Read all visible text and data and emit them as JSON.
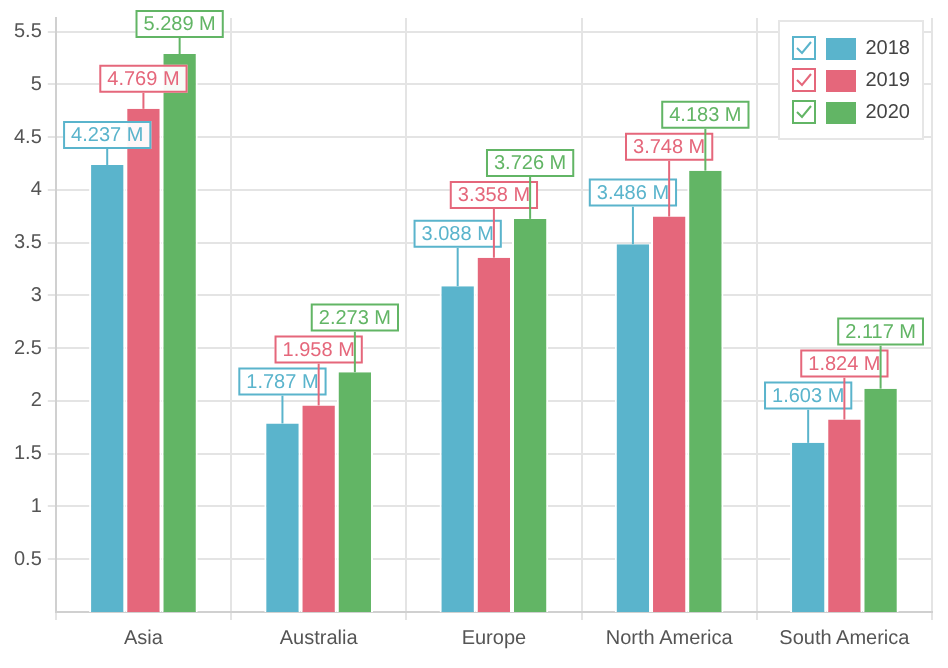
{
  "chart_data": {
    "type": "bar",
    "categories": [
      "Asia",
      "Australia",
      "Europe",
      "North America",
      "South America"
    ],
    "series": [
      {
        "name": "2018",
        "color": "#5ab4cc",
        "values": [
          4.237,
          1.787,
          3.088,
          3.486,
          1.603
        ],
        "value_labels": [
          "4.237 M",
          "1.787 M",
          "3.088 M",
          "3.486 M",
          "1.603 M"
        ]
      },
      {
        "name": "2019",
        "color": "#e5677b",
        "values": [
          4.769,
          1.958,
          3.358,
          3.748,
          1.824
        ],
        "value_labels": [
          "4.769 M",
          "1.958 M",
          "3.358 M",
          "3.748 M",
          "1.824 M"
        ]
      },
      {
        "name": "2020",
        "color": "#62b565",
        "values": [
          5.289,
          2.273,
          3.726,
          4.183,
          2.117
        ],
        "value_labels": [
          "5.289 M",
          "2.273 M",
          "3.726 M",
          "4.183 M",
          "2.117 M"
        ]
      }
    ],
    "ylim": [
      0,
      5.63
    ],
    "yticks": [
      0.5,
      1,
      1.5,
      2,
      2.5,
      3,
      3.5,
      4,
      4.5,
      5,
      5.5
    ],
    "grid": true,
    "legend": "top right"
  }
}
